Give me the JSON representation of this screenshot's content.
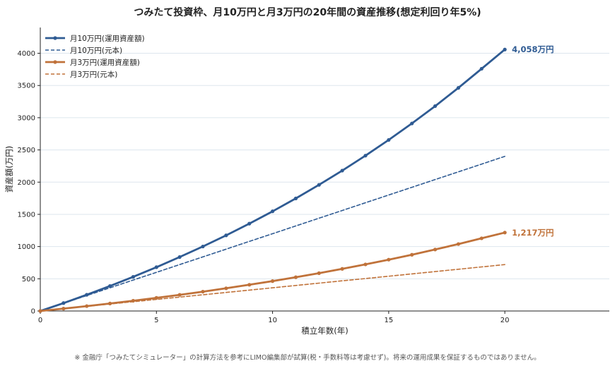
{
  "chart_data": {
    "type": "line",
    "title": "つみたて投資枠、月10万円と月3万円の20年間の資産推移(想定利回り年5%)",
    "xlabel": "積立年数(年)",
    "ylabel": "資産額(万円)",
    "x": [
      0,
      1,
      2,
      3,
      4,
      5,
      6,
      7,
      8,
      9,
      10,
      11,
      12,
      13,
      14,
      15,
      16,
      17,
      18,
      19,
      20
    ],
    "xlim": [
      0,
      24.5
    ],
    "ylim": [
      0,
      4400
    ],
    "x_ticks": [
      0,
      5,
      10,
      15,
      20
    ],
    "y_ticks": [
      0,
      500,
      1000,
      1500,
      2000,
      2500,
      3000,
      3500,
      4000
    ],
    "grid": "horizontal",
    "legend_position": "top-left",
    "series": [
      {
        "name": "月10万円(運用資産額)",
        "color": "#2f5b93",
        "style": "solid-markers",
        "values": [
          0,
          123,
          252,
          388,
          530,
          680,
          837,
          1001,
          1174,
          1356,
          1547,
          1747,
          1958,
          2179,
          2411,
          2655,
          2911,
          3180,
          3463,
          3760,
          4058
        ]
      },
      {
        "name": "月10万円(元本)",
        "color": "#2f5b93",
        "style": "dashed",
        "values": [
          0,
          120,
          240,
          360,
          480,
          600,
          720,
          840,
          960,
          1080,
          1200,
          1320,
          1440,
          1560,
          1680,
          1800,
          1920,
          2040,
          2160,
          2280,
          2400
        ]
      },
      {
        "name": "月3万円(運用資産額)",
        "color": "#c0723a",
        "style": "solid-markers",
        "values": [
          0,
          37,
          76,
          116,
          159,
          204,
          251,
          300,
          352,
          407,
          464,
          524,
          587,
          654,
          723,
          797,
          873,
          954,
          1039,
          1128,
          1217
        ]
      },
      {
        "name": "月3万円(元本)",
        "color": "#c0723a",
        "style": "dashed",
        "values": [
          0,
          36,
          72,
          108,
          144,
          180,
          216,
          252,
          288,
          324,
          360,
          396,
          432,
          468,
          504,
          540,
          576,
          612,
          648,
          684,
          720
        ]
      }
    ],
    "annotations": [
      {
        "series": 0,
        "text": "4,058万円"
      },
      {
        "series": 2,
        "text": "1,217万円"
      }
    ]
  },
  "footnote": "※ 金融庁「つみたてシミュレーター」の計算方法を参考にLIMO編集部が試算(税・手数料等は考慮せず)。将来の運用成果を保証するものではありません。"
}
